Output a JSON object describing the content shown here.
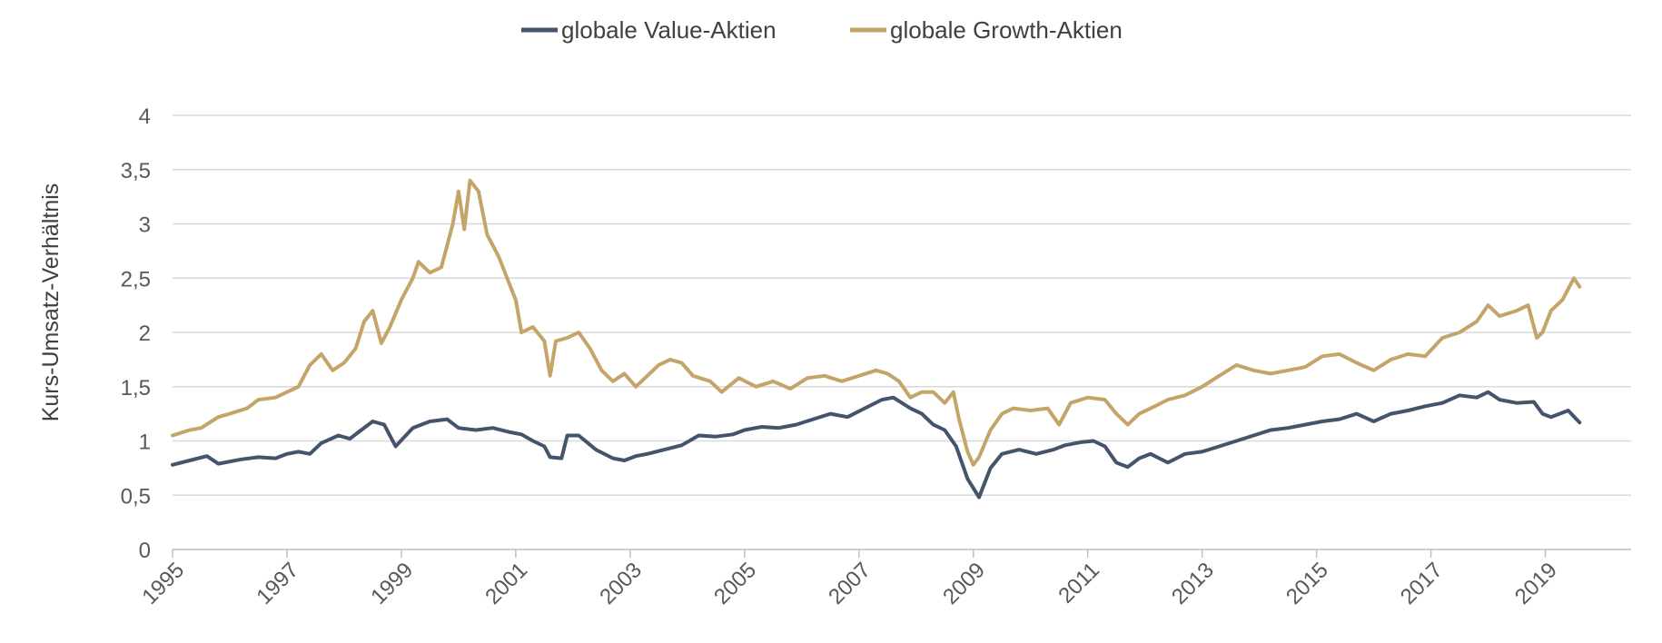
{
  "chart_data": {
    "type": "line",
    "title": "",
    "xlabel": "",
    "ylabel": "Kurs-Umsatz-Verhältnis",
    "xlim": [
      1995,
      2020.5
    ],
    "ylim": [
      0,
      4
    ],
    "y_ticks": [
      "0",
      "0,5",
      "1",
      "1,5",
      "2",
      "2,5",
      "3",
      "3,5",
      "4"
    ],
    "x_ticks": [
      "1995",
      "1997",
      "1999",
      "2001",
      "2003",
      "2005",
      "2007",
      "2009",
      "2011",
      "2013",
      "2015",
      "2017",
      "2019"
    ],
    "grid": "horizontal",
    "legend_position": "top-center",
    "series": [
      {
        "name": "globale Value-Aktien",
        "color": "#44546a",
        "x": [
          1995.0,
          1995.3,
          1995.6,
          1995.8,
          1996.2,
          1996.5,
          1996.8,
          1997.0,
          1997.2,
          1997.4,
          1997.6,
          1997.9,
          1998.1,
          1998.3,
          1998.5,
          1998.7,
          1998.9,
          1999.2,
          1999.5,
          1999.8,
          2000.0,
          2000.3,
          2000.6,
          2000.9,
          2001.1,
          2001.3,
          2001.5,
          2001.6,
          2001.8,
          2001.9,
          2002.1,
          2002.4,
          2002.7,
          2002.9,
          2003.1,
          2003.3,
          2003.6,
          2003.9,
          2004.2,
          2004.5,
          2004.8,
          2005.0,
          2005.3,
          2005.6,
          2005.9,
          2006.2,
          2006.5,
          2006.8,
          2007.1,
          2007.4,
          2007.6,
          2007.9,
          2008.1,
          2008.3,
          2008.5,
          2008.7,
          2008.9,
          2009.1,
          2009.3,
          2009.5,
          2009.8,
          2010.1,
          2010.4,
          2010.6,
          2010.9,
          2011.1,
          2011.3,
          2011.5,
          2011.7,
          2011.9,
          2012.1,
          2012.4,
          2012.7,
          2013.0,
          2013.3,
          2013.6,
          2013.9,
          2014.2,
          2014.5,
          2014.8,
          2015.1,
          2015.4,
          2015.7,
          2016.0,
          2016.3,
          2016.6,
          2016.9,
          2017.2,
          2017.5,
          2017.8,
          2018.0,
          2018.2,
          2018.5,
          2018.8,
          2018.95,
          2019.1,
          2019.4,
          2019.6
        ],
        "values": [
          0.78,
          0.82,
          0.86,
          0.79,
          0.83,
          0.85,
          0.84,
          0.88,
          0.9,
          0.88,
          0.98,
          1.05,
          1.02,
          1.1,
          1.18,
          1.15,
          0.95,
          1.12,
          1.18,
          1.2,
          1.12,
          1.1,
          1.12,
          1.08,
          1.06,
          1.0,
          0.95,
          0.85,
          0.84,
          1.05,
          1.05,
          0.92,
          0.84,
          0.82,
          0.86,
          0.88,
          0.92,
          0.96,
          1.05,
          1.04,
          1.06,
          1.1,
          1.13,
          1.12,
          1.15,
          1.2,
          1.25,
          1.22,
          1.3,
          1.38,
          1.4,
          1.3,
          1.25,
          1.15,
          1.1,
          0.95,
          0.65,
          0.48,
          0.75,
          0.88,
          0.92,
          0.88,
          0.92,
          0.96,
          0.99,
          1.0,
          0.95,
          0.8,
          0.76,
          0.84,
          0.88,
          0.8,
          0.88,
          0.9,
          0.95,
          1.0,
          1.05,
          1.1,
          1.12,
          1.15,
          1.18,
          1.2,
          1.25,
          1.18,
          1.25,
          1.28,
          1.32,
          1.35,
          1.42,
          1.4,
          1.45,
          1.38,
          1.35,
          1.36,
          1.25,
          1.22,
          1.28,
          1.17
        ]
      },
      {
        "name": "globale Growth-Aktien",
        "color": "#c5a46a",
        "x": [
          1995.0,
          1995.3,
          1995.5,
          1995.8,
          1996.0,
          1996.3,
          1996.5,
          1996.8,
          1997.0,
          1997.2,
          1997.4,
          1997.6,
          1997.8,
          1998.0,
          1998.2,
          1998.35,
          1998.5,
          1998.65,
          1998.8,
          1999.0,
          1999.2,
          1999.3,
          1999.5,
          1999.7,
          1999.9,
          2000.0,
          2000.1,
          2000.2,
          2000.35,
          2000.5,
          2000.7,
          2000.85,
          2001.0,
          2001.1,
          2001.3,
          2001.5,
          2001.6,
          2001.7,
          2001.9,
          2002.1,
          2002.3,
          2002.5,
          2002.7,
          2002.9,
          2003.1,
          2003.3,
          2003.5,
          2003.7,
          2003.9,
          2004.1,
          2004.4,
          2004.6,
          2004.9,
          2005.2,
          2005.5,
          2005.8,
          2006.1,
          2006.4,
          2006.7,
          2007.0,
          2007.3,
          2007.5,
          2007.7,
          2007.9,
          2008.1,
          2008.3,
          2008.5,
          2008.65,
          2008.75,
          2008.9,
          2009.0,
          2009.1,
          2009.3,
          2009.5,
          2009.7,
          2010.0,
          2010.3,
          2010.5,
          2010.7,
          2011.0,
          2011.3,
          2011.5,
          2011.7,
          2011.9,
          2012.1,
          2012.4,
          2012.7,
          2013.0,
          2013.3,
          2013.6,
          2013.9,
          2014.2,
          2014.5,
          2014.8,
          2015.1,
          2015.4,
          2015.7,
          2016.0,
          2016.3,
          2016.6,
          2016.9,
          2017.2,
          2017.5,
          2017.8,
          2018.0,
          2018.2,
          2018.5,
          2018.7,
          2018.85,
          2018.95,
          2019.1,
          2019.3,
          2019.5,
          2019.6
        ],
        "values": [
          1.05,
          1.1,
          1.12,
          1.22,
          1.25,
          1.3,
          1.38,
          1.4,
          1.45,
          1.5,
          1.7,
          1.8,
          1.65,
          1.72,
          1.85,
          2.1,
          2.2,
          1.9,
          2.05,
          2.3,
          2.5,
          2.65,
          2.55,
          2.6,
          3.0,
          3.3,
          2.95,
          3.4,
          3.3,
          2.9,
          2.7,
          2.5,
          2.3,
          2.0,
          2.05,
          1.92,
          1.6,
          1.92,
          1.95,
          2.0,
          1.85,
          1.65,
          1.55,
          1.62,
          1.5,
          1.6,
          1.7,
          1.75,
          1.72,
          1.6,
          1.55,
          1.45,
          1.58,
          1.5,
          1.55,
          1.48,
          1.58,
          1.6,
          1.55,
          1.6,
          1.65,
          1.62,
          1.55,
          1.4,
          1.45,
          1.45,
          1.35,
          1.45,
          1.2,
          0.9,
          0.78,
          0.85,
          1.1,
          1.25,
          1.3,
          1.28,
          1.3,
          1.15,
          1.35,
          1.4,
          1.38,
          1.25,
          1.15,
          1.25,
          1.3,
          1.38,
          1.42,
          1.5,
          1.6,
          1.7,
          1.65,
          1.62,
          1.65,
          1.68,
          1.78,
          1.8,
          1.72,
          1.65,
          1.75,
          1.8,
          1.78,
          1.95,
          2.0,
          2.1,
          2.25,
          2.15,
          2.2,
          2.25,
          1.95,
          2.0,
          2.2,
          2.3,
          2.5,
          2.42
        ]
      }
    ]
  }
}
